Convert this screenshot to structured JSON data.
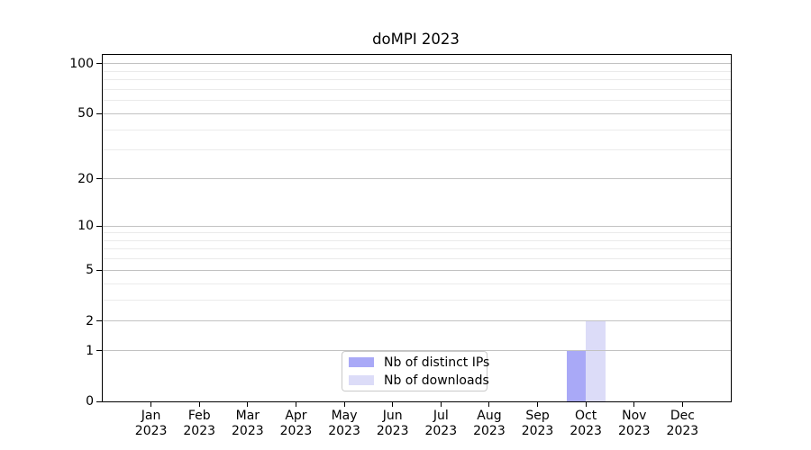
{
  "chart_data": {
    "type": "bar",
    "title": "doMPI 2023",
    "categories": [
      "Jan",
      "Feb",
      "Mar",
      "Apr",
      "May",
      "Jun",
      "Jul",
      "Aug",
      "Sep",
      "Oct",
      "Nov",
      "Dec"
    ],
    "year_label": "2023",
    "series": [
      {
        "name": "Nb of distinct IPs",
        "color": "#a9a9f7",
        "values": [
          0,
          0,
          0,
          0,
          0,
          0,
          0,
          0,
          0,
          1,
          0,
          0
        ]
      },
      {
        "name": "Nb of downloads",
        "color": "#dcdcf8",
        "values": [
          0,
          0,
          0,
          0,
          0,
          0,
          0,
          0,
          0,
          2,
          0,
          0
        ]
      }
    ],
    "y_scale": "log1p",
    "ylim": [
      0,
      113
    ],
    "y_major_ticks": [
      0,
      1,
      2,
      5,
      10,
      20,
      50,
      100
    ],
    "y_minor_ticks": [
      3,
      4,
      6,
      7,
      8,
      9,
      30,
      40,
      60,
      70,
      80,
      90
    ],
    "grid": true,
    "legend_position": "lower center",
    "colors": {
      "axis": "#000000",
      "major_grid": "#c2c2c2",
      "minor_grid": "#ebebeb",
      "legend_border": "#c9c9c9"
    }
  }
}
